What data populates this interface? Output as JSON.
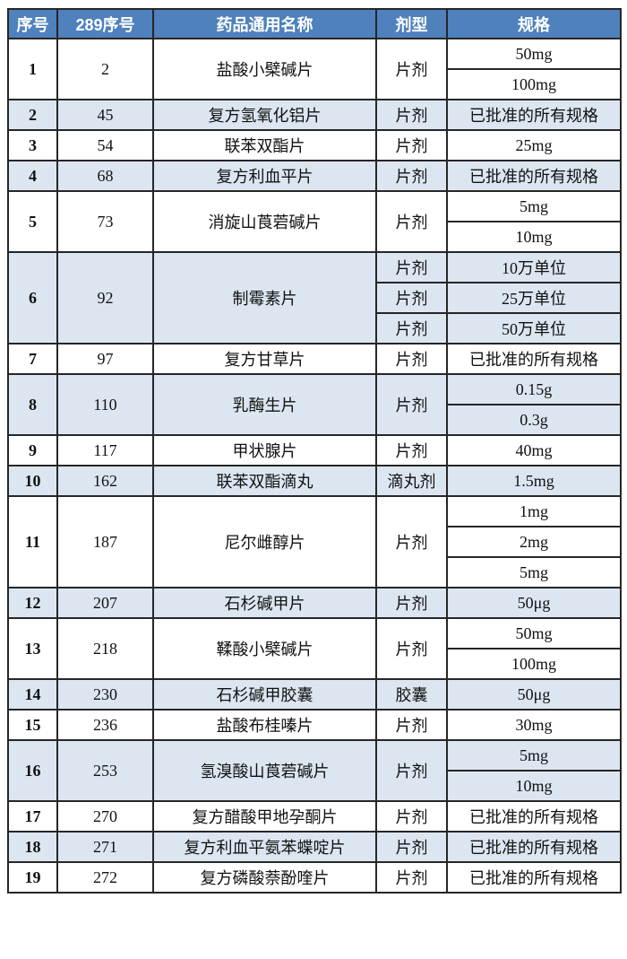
{
  "colors": {
    "header_bg": "#4f81bd",
    "header_fg": "#ffffff",
    "row_shade": "#dce6f1",
    "border": "#262626"
  },
  "table": {
    "columns": [
      "序号",
      "289序号",
      "药品通用名称",
      "剂型",
      "规格"
    ],
    "rows": [
      {
        "no": "1",
        "no289": "2",
        "name": "盐酸小檗碱片",
        "form": "片剂",
        "form_merged": true,
        "specs": [
          "50mg",
          "100mg"
        ],
        "shaded": false
      },
      {
        "no": "2",
        "no289": "45",
        "name": "复方氢氧化铝片",
        "form": "片剂",
        "form_merged": true,
        "specs": [
          "已批准的所有规格"
        ],
        "shaded": true
      },
      {
        "no": "3",
        "no289": "54",
        "name": "联苯双酯片",
        "form": "片剂",
        "form_merged": true,
        "specs": [
          "25mg"
        ],
        "shaded": false
      },
      {
        "no": "4",
        "no289": "68",
        "name": "复方利血平片",
        "form": "片剂",
        "form_merged": true,
        "specs": [
          "已批准的所有规格"
        ],
        "shaded": true
      },
      {
        "no": "5",
        "no289": "73",
        "name": "消旋山莨菪碱片",
        "form": "片剂",
        "form_merged": true,
        "specs": [
          "5mg",
          "10mg"
        ],
        "shaded": false
      },
      {
        "no": "6",
        "no289": "92",
        "name": "制霉素片",
        "form": "片剂",
        "form_merged": false,
        "specs": [
          "10万单位",
          "25万单位",
          "50万单位"
        ],
        "shaded": true
      },
      {
        "no": "7",
        "no289": "97",
        "name": "复方甘草片",
        "form": "片剂",
        "form_merged": true,
        "specs": [
          "已批准的所有规格"
        ],
        "shaded": false
      },
      {
        "no": "8",
        "no289": "110",
        "name": "乳酶生片",
        "form": "片剂",
        "form_merged": true,
        "specs": [
          "0.15g",
          "0.3g"
        ],
        "shaded": true
      },
      {
        "no": "9",
        "no289": "117",
        "name": "甲状腺片",
        "form": "片剂",
        "form_merged": true,
        "specs": [
          "40mg"
        ],
        "shaded": false
      },
      {
        "no": "10",
        "no289": "162",
        "name": "联苯双酯滴丸",
        "form": "滴丸剂",
        "form_merged": true,
        "specs": [
          "1.5mg"
        ],
        "shaded": true
      },
      {
        "no": "11",
        "no289": "187",
        "name": "尼尔雌醇片",
        "form": "片剂",
        "form_merged": true,
        "specs": [
          "1mg",
          "2mg",
          "5mg"
        ],
        "shaded": false
      },
      {
        "no": "12",
        "no289": "207",
        "name": "石杉碱甲片",
        "form": "片剂",
        "form_merged": true,
        "specs": [
          "50μg"
        ],
        "shaded": true
      },
      {
        "no": "13",
        "no289": "218",
        "name": "鞣酸小檗碱片",
        "form": "片剂",
        "form_merged": true,
        "specs": [
          "50mg",
          "100mg"
        ],
        "shaded": false
      },
      {
        "no": "14",
        "no289": "230",
        "name": "石杉碱甲胶囊",
        "form": "胶囊",
        "form_merged": true,
        "specs": [
          "50μg"
        ],
        "shaded": true
      },
      {
        "no": "15",
        "no289": "236",
        "name": "盐酸布桂嗪片",
        "form": "片剂",
        "form_merged": true,
        "specs": [
          "30mg"
        ],
        "shaded": false
      },
      {
        "no": "16",
        "no289": "253",
        "name": "氢溴酸山莨菪碱片",
        "form": "片剂",
        "form_merged": true,
        "specs": [
          "5mg",
          "10mg"
        ],
        "shaded": true
      },
      {
        "no": "17",
        "no289": "270",
        "name": "复方醋酸甲地孕酮片",
        "form": "片剂",
        "form_merged": true,
        "specs": [
          "已批准的所有规格"
        ],
        "shaded": false
      },
      {
        "no": "18",
        "no289": "271",
        "name": "复方利血平氨苯蝶啶片",
        "form": "片剂",
        "form_merged": true,
        "specs": [
          "已批准的所有规格"
        ],
        "shaded": true
      },
      {
        "no": "19",
        "no289": "272",
        "name": "复方磷酸萘酚喹片",
        "form": "片剂",
        "form_merged": true,
        "specs": [
          "已批准的所有规格"
        ],
        "shaded": false
      }
    ]
  }
}
